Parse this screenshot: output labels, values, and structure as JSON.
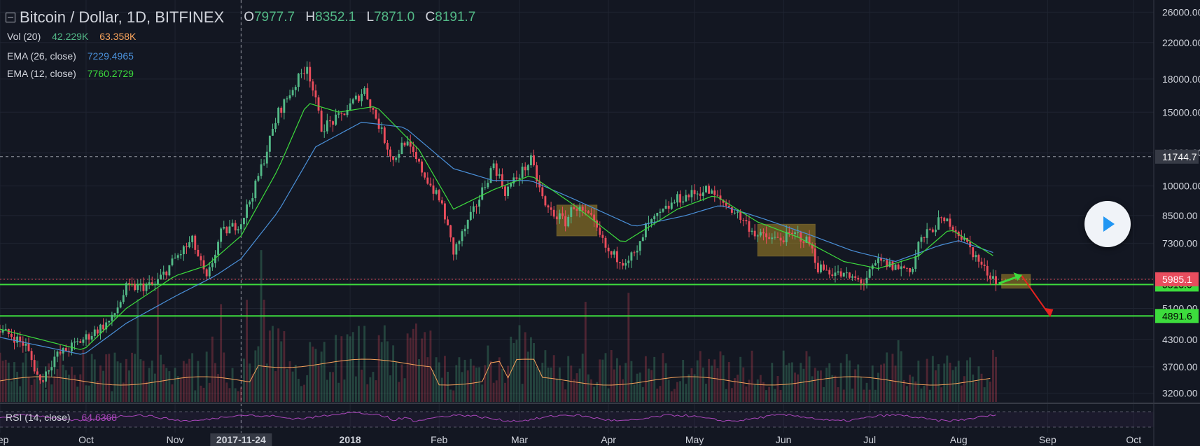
{
  "header": {
    "title": "Bitcoin / Dollar, 1D, BITFINEX",
    "open_label": "O",
    "open": "7977.7",
    "high_label": "H",
    "high": "8352.1",
    "low_label": "L",
    "low": "7871.0",
    "close_label": "C",
    "close": "8191.7"
  },
  "indicators": {
    "vol": {
      "label": "Vol (20)",
      "v1": "42.229K",
      "v2": "63.358K",
      "c1": "#53b987",
      "c2": "#f7a35c"
    },
    "ema26": {
      "label": "EMA (26, close)",
      "value": "7229.4965",
      "color": "#4a90d9"
    },
    "ema12": {
      "label": "EMA (12, close)",
      "value": "7760.2729",
      "color": "#3ddc3d"
    },
    "rsi": {
      "label": "RSI (14, close)",
      "value": "64.6368",
      "color": "#ab47bc"
    }
  },
  "chart_data": {
    "type": "candlestick",
    "log_scale": true,
    "grid": true,
    "ylim": [
      3050,
      27800
    ],
    "y_ticks": [
      3200,
      3700,
      4300,
      5100,
      6000,
      7300,
      8500,
      10000,
      12000,
      15000,
      18000,
      22000,
      26000
    ],
    "y_tick_labels": [
      "3200.00",
      "3700.00",
      "4300.00",
      "5100.00",
      "6000.00",
      "7300.00",
      "8500.00",
      "10000.00",
      "12000.00",
      "15000.00",
      "18000.00",
      "22000.00",
      "26000.00"
    ],
    "x_labels": [
      "Sep",
      "Oct",
      "Nov",
      "2017-11-24",
      "2018",
      "Feb",
      "Mar",
      "Apr",
      "May",
      "Jun",
      "Jul",
      "Aug",
      "Sep",
      "Oct"
    ],
    "x_range": [
      "2017-09-01",
      "2018-10-08"
    ],
    "x_label_dates": [
      "2017-09-01",
      "2017-10-01",
      "2017-11-01",
      "2017-11-24",
      "2018-01-01",
      "2018-02-01",
      "2018-03-01",
      "2018-04-01",
      "2018-05-01",
      "2018-06-01",
      "2018-07-01",
      "2018-08-01",
      "2018-09-01",
      "2018-10-01"
    ],
    "crosshair": {
      "date": "2017-11-24",
      "price": 11744.7,
      "price_label": "11744.7"
    },
    "price_path": [
      [
        "2017-09-01",
        4500
      ],
      [
        "2017-09-05",
        4400
      ],
      [
        "2017-09-10",
        4150
      ],
      [
        "2017-09-15",
        3400
      ],
      [
        "2017-09-20",
        3900
      ],
      [
        "2017-09-30",
        4300
      ],
      [
        "2017-10-10",
        4800
      ],
      [
        "2017-10-15",
        5700
      ],
      [
        "2017-10-25",
        5800
      ],
      [
        "2017-11-01",
        6700
      ],
      [
        "2017-11-07",
        7400
      ],
      [
        "2017-11-12",
        5950
      ],
      [
        "2017-11-17",
        7700
      ],
      [
        "2017-11-24",
        8200
      ],
      [
        "2017-11-29",
        10000
      ],
      [
        "2017-12-07",
        15000
      ],
      [
        "2017-12-17",
        19500
      ],
      [
        "2017-12-22",
        13800
      ],
      [
        "2017-12-28",
        14500
      ],
      [
        "2018-01-06",
        17000
      ],
      [
        "2018-01-16",
        11500
      ],
      [
        "2018-01-20",
        12800
      ],
      [
        "2018-01-25",
        11200
      ],
      [
        "2018-02-02",
        9000
      ],
      [
        "2018-02-06",
        6950
      ],
      [
        "2018-02-13",
        8700
      ],
      [
        "2018-02-20",
        11300
      ],
      [
        "2018-02-24",
        9700
      ],
      [
        "2018-03-05",
        11500
      ],
      [
        "2018-03-10",
        8900
      ],
      [
        "2018-03-17",
        8200
      ],
      [
        "2018-03-20",
        9000
      ],
      [
        "2018-03-26",
        8300
      ],
      [
        "2018-04-01",
        6900
      ],
      [
        "2018-04-06",
        6650
      ],
      [
        "2018-04-11",
        6900
      ],
      [
        "2018-04-14",
        7950
      ],
      [
        "2018-04-25",
        9300
      ],
      [
        "2018-05-05",
        9800
      ],
      [
        "2018-05-15",
        8700
      ],
      [
        "2018-05-23",
        7600
      ],
      [
        "2018-05-29",
        7450
      ],
      [
        "2018-06-06",
        7650
      ],
      [
        "2018-06-10",
        7300
      ],
      [
        "2018-06-13",
        6400
      ],
      [
        "2018-06-22",
        6100
      ],
      [
        "2018-06-29",
        5900
      ],
      [
        "2018-07-04",
        6600
      ],
      [
        "2018-07-10",
        6400
      ],
      [
        "2018-07-16",
        6350
      ],
      [
        "2018-07-18",
        7300
      ],
      [
        "2018-07-25",
        8200
      ],
      [
        "2018-07-29",
        8200
      ],
      [
        "2018-08-05",
        7100
      ],
      [
        "2018-08-10",
        6300
      ],
      [
        "2018-08-14",
        5985
      ]
    ],
    "ema12_path": [
      [
        "2017-09-01",
        4550
      ],
      [
        "2017-09-30",
        4050
      ],
      [
        "2017-10-15",
        5100
      ],
      [
        "2017-11-01",
        6100
      ],
      [
        "2017-11-12",
        6450
      ],
      [
        "2017-11-24",
        7600
      ],
      [
        "2017-12-07",
        11000
      ],
      [
        "2017-12-17",
        15800
      ],
      [
        "2017-12-28",
        15000
      ],
      [
        "2018-01-10",
        15500
      ],
      [
        "2018-01-25",
        12200
      ],
      [
        "2018-02-06",
        8800
      ],
      [
        "2018-02-20",
        9800
      ],
      [
        "2018-03-05",
        10600
      ],
      [
        "2018-03-20",
        9000
      ],
      [
        "2018-04-06",
        7300
      ],
      [
        "2018-04-25",
        8800
      ],
      [
        "2018-05-08",
        9500
      ],
      [
        "2018-05-23",
        8200
      ],
      [
        "2018-06-06",
        7550
      ],
      [
        "2018-06-22",
        6600
      ],
      [
        "2018-07-04",
        6350
      ],
      [
        "2018-07-18",
        6800
      ],
      [
        "2018-07-29",
        7900
      ],
      [
        "2018-08-14",
        6750
      ]
    ],
    "ema26_path": [
      [
        "2017-09-01",
        4350
      ],
      [
        "2017-09-30",
        3950
      ],
      [
        "2017-10-15",
        4700
      ],
      [
        "2017-11-01",
        5450
      ],
      [
        "2017-11-15",
        6100
      ],
      [
        "2017-11-24",
        6700
      ],
      [
        "2017-12-07",
        8700
      ],
      [
        "2017-12-20",
        12400
      ],
      [
        "2018-01-05",
        14200
      ],
      [
        "2018-01-20",
        13800
      ],
      [
        "2018-02-06",
        11000
      ],
      [
        "2018-02-20",
        10300
      ],
      [
        "2018-03-05",
        10300
      ],
      [
        "2018-03-20",
        9300
      ],
      [
        "2018-04-10",
        8000
      ],
      [
        "2018-04-28",
        8500
      ],
      [
        "2018-05-10",
        9000
      ],
      [
        "2018-05-25",
        8350
      ],
      [
        "2018-06-10",
        7650
      ],
      [
        "2018-06-25",
        7000
      ],
      [
        "2018-07-10",
        6600
      ],
      [
        "2018-07-25",
        7200
      ],
      [
        "2018-08-01",
        7400
      ],
      [
        "2018-08-14",
        6900
      ]
    ],
    "horizontal_levels": [
      {
        "value": 5815.0,
        "label": "5815.0",
        "color": "#3ddc3d"
      },
      {
        "value": 4891.6,
        "label": "4891.6",
        "color": "#3ddc3d"
      }
    ],
    "last_price": {
      "value": 5985.1,
      "label": "5985.1",
      "color": "#e84d5e"
    },
    "highlight_boxes": [
      {
        "from": "2018-03-14",
        "to": "2018-03-28",
        "high": 9000,
        "low": 7600
      },
      {
        "from": "2018-05-23",
        "to": "2018-06-12",
        "high": 8100,
        "low": 6800
      },
      {
        "from": "2018-08-16",
        "to": "2018-08-26",
        "high": 6150,
        "low": 5700
      }
    ],
    "volume_ma": 63358,
    "rsi_latest": 64.6368
  }
}
